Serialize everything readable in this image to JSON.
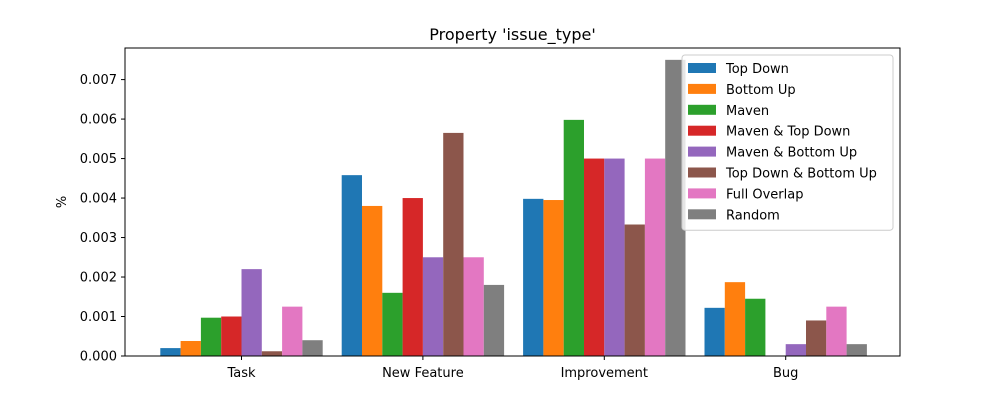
{
  "chart_data": {
    "type": "bar",
    "title": "Property 'issue_type'",
    "xlabel": "",
    "ylabel": "%",
    "ylim": [
      0,
      0.0078
    ],
    "yticks": [
      "0.000",
      "0.001",
      "0.002",
      "0.003",
      "0.004",
      "0.005",
      "0.006",
      "0.007"
    ],
    "categories": [
      "Task",
      "New Feature",
      "Improvement",
      "Bug"
    ],
    "legend_position": "top-right",
    "grid": false,
    "series": [
      {
        "name": "Top Down",
        "color": "#1f77b4",
        "values": [
          0.0002,
          0.00458,
          0.00398,
          0.00122
        ]
      },
      {
        "name": "Bottom Up",
        "color": "#ff7f0e",
        "values": [
          0.00038,
          0.0038,
          0.00395,
          0.00187
        ]
      },
      {
        "name": "Maven",
        "color": "#2ca02c",
        "values": [
          0.00097,
          0.0016,
          0.00598,
          0.00145
        ]
      },
      {
        "name": "Maven & Top Down",
        "color": "#d62728",
        "values": [
          0.001,
          0.004,
          0.005,
          0
        ]
      },
      {
        "name": "Maven & Bottom Up",
        "color": "#9467bd",
        "values": [
          0.0022,
          0.0025,
          0.005,
          0.0003
        ]
      },
      {
        "name": "Top Down & Bottom Up",
        "color": "#8c564b",
        "values": [
          0.00012,
          0.00565,
          0.00333,
          0.0009
        ]
      },
      {
        "name": "Full Overlap",
        "color": "#e377c2",
        "values": [
          0.00125,
          0.0025,
          0.005,
          0.00125
        ]
      },
      {
        "name": "Random",
        "color": "#7f7f7f",
        "values": [
          0.0004,
          0.0018,
          0.0075,
          0.0003
        ]
      }
    ]
  }
}
